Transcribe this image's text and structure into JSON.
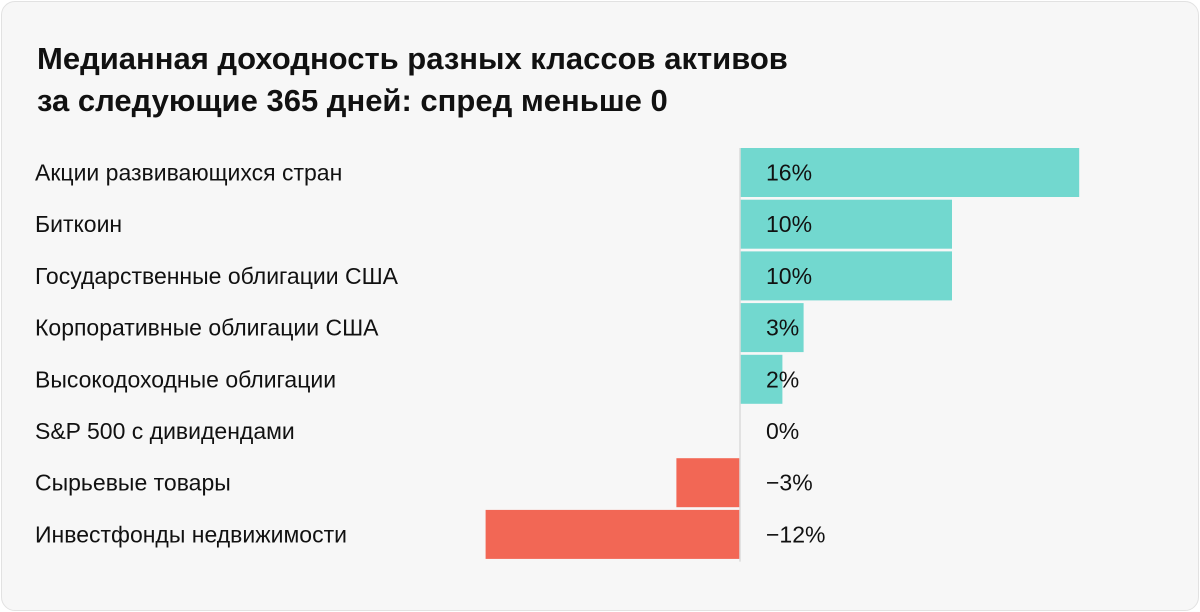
{
  "chart_data": {
    "type": "bar",
    "orientation": "horizontal",
    "title_lines": [
      "Медианная доходность разных классов активов",
      "за следующие 365 дней: спред меньше 0"
    ],
    "categories": [
      "Акции развивающихся стран",
      "Биткоин",
      "Государственные облигации США",
      "Корпоративные облигации США",
      "Высокодоходные облигации",
      "S&P 500 с дивидендами",
      "Сырьевые товары",
      "Инвестфонды недвижимости"
    ],
    "values": [
      16,
      10,
      10,
      3,
      2,
      0,
      -3,
      -12
    ],
    "value_labels": [
      "16%",
      "10%",
      "10%",
      "3%",
      "2%",
      "0%",
      "−3%",
      "−12%"
    ],
    "xlabel": "",
    "ylabel": "",
    "unit": "%",
    "grid": false,
    "colors": {
      "positive": "#72d8cf",
      "negative": "#f26755",
      "axis": "#dcdcdc"
    }
  }
}
